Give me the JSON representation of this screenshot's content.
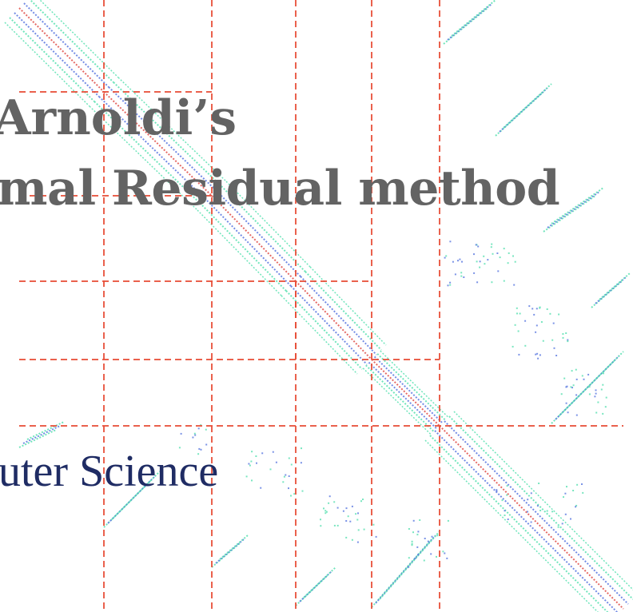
{
  "slide": {
    "title_line_1": "Arnoldi’s",
    "title_line_2": "mal Residual method",
    "subtitle": "uter Science"
  },
  "colors": {
    "title": "#636363",
    "subtitle": "#1f2c64",
    "dashed_lines": "#e8503a",
    "pattern_blue": "#5a78e0",
    "pattern_green": "#58e0b0",
    "pattern_red": "#e0504a",
    "background": "#ffffff"
  }
}
